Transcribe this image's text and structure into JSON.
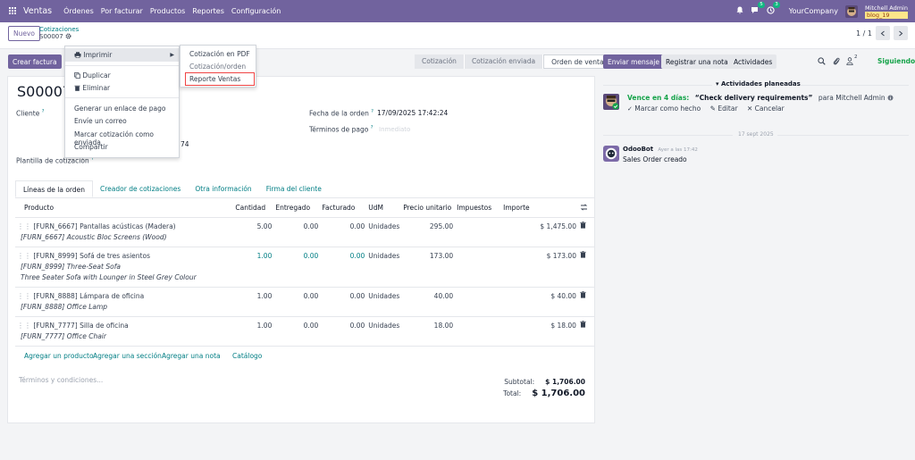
{
  "topbar": {
    "app_name": "Ventas",
    "menu": [
      "Órdenes",
      "Por facturar",
      "Productos",
      "Reportes",
      "Configuración"
    ],
    "messages_count": "5",
    "activities_count": "3",
    "company": "YourCompany",
    "user_name": "Mitchell Admin",
    "db_name": "blog_19"
  },
  "control": {
    "new_label": "Nuevo",
    "breadcrumb_parent": "Cotizaciones",
    "breadcrumb_current": "S00007",
    "pager": "1 / 1"
  },
  "actions": {
    "create_invoice": "Crear factura"
  },
  "status_steps": [
    {
      "label": "Cotización"
    },
    {
      "label": "Cotización enviada"
    },
    {
      "label": "Orden de venta"
    }
  ],
  "order": {
    "number": "S00007",
    "customer_label": "Cliente",
    "date_label": "Fecha de la orden",
    "date_value": "17/09/2025 17:42:24",
    "payment_terms_label": "Términos de pago",
    "payment_terms_placeholder": "Inmediato",
    "template_label": "Plantilla de cotización",
    "partial_value": "74"
  },
  "tabs": [
    "Líneas de la orden",
    "Creador de cotizaciones",
    "Otra información",
    "Firma del cliente"
  ],
  "columns": [
    "Producto",
    "Cantidad",
    "Entregado",
    "Facturado",
    "UdM",
    "Precio unitario",
    "Impuestos",
    "Importe"
  ],
  "lines": [
    {
      "product": "[FURN_6667] Pantallas acústicas (Madera)",
      "desc": [
        "[FURN_6667] Acoustic Bloc Screens (Wood)"
      ],
      "qty": "5.00",
      "delivered": "0.00",
      "invoiced": "0.00",
      "uom": "Unidades",
      "price": "295.00",
      "subtotal": "$ 1,475.00",
      "highlight": false
    },
    {
      "product": "[FURN_8999] Sofá de tres asientos",
      "desc": [
        "[FURN_8999] Three-Seat Sofa",
        "Three Seater Sofa with Lounger in Steel Grey Colour"
      ],
      "qty": "1.00",
      "delivered": "0.00",
      "invoiced": "0.00",
      "uom": "Unidades",
      "price": "173.00",
      "subtotal": "$ 173.00",
      "highlight": true
    },
    {
      "product": "[FURN_8888] Lámpara de oficina",
      "desc": [
        "[FURN_8888] Office Lamp"
      ],
      "qty": "1.00",
      "delivered": "0.00",
      "invoiced": "0.00",
      "uom": "Unidades",
      "price": "40.00",
      "subtotal": "$ 40.00",
      "highlight": false
    },
    {
      "product": "[FURN_7777] Silla de oficina",
      "desc": [
        "[FURN_7777] Office Chair"
      ],
      "qty": "1.00",
      "delivered": "0.00",
      "invoiced": "0.00",
      "uom": "Unidades",
      "price": "18.00",
      "subtotal": "$ 18.00",
      "highlight": false
    }
  ],
  "add_links": [
    "Agregar un producto",
    "Agregar una sección",
    "Agregar una nota",
    "Catálogo"
  ],
  "terms_placeholder": "Términos y condiciones...",
  "totals": {
    "subtotal_label": "Subtotal:",
    "subtotal": "$ 1,706.00",
    "total_label": "Total:",
    "total": "$ 1,706.00"
  },
  "dropdown": {
    "print": "Imprimir",
    "duplicate": "Duplicar",
    "delete": "Eliminar",
    "gen_payment": "Generar un enlace de pago",
    "send_email": "Envíe un correo",
    "mark_sent": "Marcar cotización como enviada",
    "share": "Compartir"
  },
  "submenu": {
    "pdf": "Cotización en PDF",
    "order": "Cotización/orden",
    "report": "Reporte Ventas"
  },
  "chatter": {
    "send_message": "Enviar mensaje",
    "log_note": "Registrar una nota",
    "activities": "Actividades",
    "follow": "Siguiendo",
    "followers_count": "2",
    "planned_title": "Actividades planeadas",
    "activity_due": "Vence en 4 días:",
    "activity_title": "“Check delivery requirements”",
    "activity_for": "para Mitchell Admin",
    "mark_done": "Marcar como hecho",
    "edit": "Editar",
    "cancel": "Cancelar",
    "date_sep": "17 sept 2025",
    "msg_author": "OdooBot",
    "msg_time": "Ayer a las 17:42",
    "msg_body": "Sales Order creado"
  },
  "colors": {
    "brand": "#71639e",
    "link": "#017e84",
    "follow": "#16a34a"
  }
}
